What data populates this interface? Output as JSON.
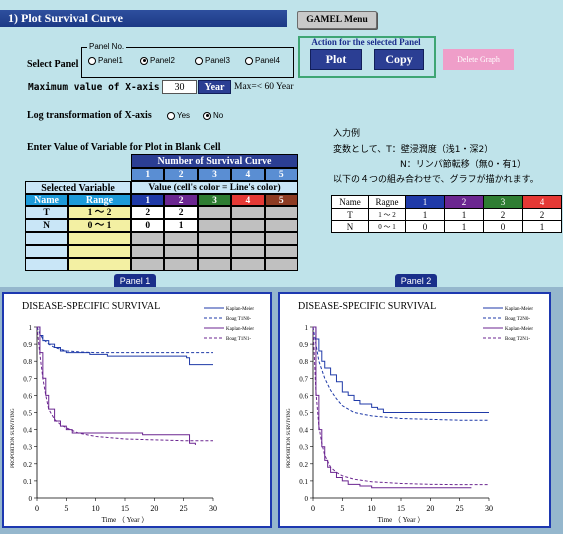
{
  "header": {
    "title": "1)  Plot Survival Curve",
    "menu_label": "GAMEL Menu"
  },
  "select_panel": {
    "label": "Select Panel",
    "group_title": "Panel No.",
    "options": [
      "Panel1",
      "Panel2",
      "Panel3",
      "Panel4"
    ],
    "selected": "Panel2"
  },
  "actions": {
    "title": "Action for the selected Panel",
    "plot": "Plot",
    "copy": "Copy",
    "delete": "Delete Graph"
  },
  "max_x": {
    "label": "Maximum value of X-axis",
    "value": "30",
    "unit_button": "Year",
    "hint": "Max=< 60 Year"
  },
  "logx": {
    "label": "Log transformation of X-axis",
    "yes": "Yes",
    "no": "No",
    "selected": "No"
  },
  "enter_label": "Enter Value of Variable for Plot in Blank Cell",
  "table": {
    "curve_header": "Number of Survival Curve",
    "curve_numbers": [
      "1",
      "2",
      "3",
      "4",
      "5"
    ],
    "curve_colors": [
      "#1f3aa8",
      "#6b2690",
      "#2e7d32",
      "#e53935",
      "#8d3b22"
    ],
    "value_header": "Value (cell's color = Line's color)",
    "selected_header": "Selected Variable",
    "name_header": "Name",
    "range_header": "Range",
    "rows": [
      {
        "name": "T",
        "range": "1 ～ 2",
        "values": [
          "2",
          "2",
          "",
          "",
          ""
        ]
      },
      {
        "name": "N",
        "range": "0 ～ 1",
        "values": [
          "0",
          "1",
          "",
          "",
          ""
        ]
      },
      {
        "name": "",
        "range": "",
        "values": [
          "",
          "",
          "",
          "",
          ""
        ]
      },
      {
        "name": "",
        "range": "",
        "values": [
          "",
          "",
          "",
          "",
          ""
        ]
      },
      {
        "name": "",
        "range": "",
        "values": [
          "",
          "",
          "",
          "",
          ""
        ]
      }
    ]
  },
  "example": {
    "title": "入力例",
    "line1": "変数として、T：壁浸潤度（浅1・深2）",
    "line2": "N：リンパ節転移（無0・有1）",
    "line3": "以下の４つの組み合わせで、グラフが描かれます。",
    "headers": [
      "Name",
      "Ragne",
      "1",
      "2",
      "3",
      "4"
    ],
    "rows": [
      {
        "name": "T",
        "range": "1 ～ 2",
        "values": [
          "1",
          "1",
          "2",
          "2"
        ]
      },
      {
        "name": "N",
        "range": "0 ～ 1",
        "values": [
          "0",
          "1",
          "0",
          "1"
        ]
      }
    ]
  },
  "panels": [
    {
      "tab": "Panel 1",
      "title": "DISEASE-SPECIFIC SURVIVAL",
      "ylabel": "PROPORTION SURVIVING",
      "xlabel": "Time （ Year ）",
      "legend": [
        "Kaplan-Meier",
        "Boag T1N0-",
        "Kaplan-Meier",
        "Boag T1N1-"
      ]
    },
    {
      "tab": "Panel 2",
      "title": "DISEASE-SPECIFIC SURVIVAL",
      "ylabel": "PROPORTION SURVIVING",
      "xlabel": "Time （ Year ）",
      "legend": [
        "Kaplan-Meier",
        "Boag T2N0-",
        "Kaplan-Meier",
        "Boag T2N1-"
      ]
    }
  ],
  "chart_data": [
    {
      "type": "line",
      "title": "DISEASE-SPECIFIC SURVIVAL",
      "xlabel": "Time （ Year ）",
      "ylabel": "PROPORTION SURVIVING",
      "xlim": [
        0,
        30
      ],
      "ylim": [
        0,
        1
      ],
      "xticks": [
        0,
        5,
        10,
        15,
        20,
        25,
        30
      ],
      "yticks": [
        0,
        0.1,
        0.2,
        0.3,
        0.4,
        0.5,
        0.6,
        0.7,
        0.8,
        0.9,
        1
      ],
      "series": [
        {
          "name": "Kaplan-Meier",
          "style": "step",
          "color": "#1f3aa8",
          "x": [
            0,
            0.5,
            1,
            2,
            3,
            4,
            5,
            7,
            9,
            12,
            20,
            25.5,
            26,
            30
          ],
          "y": [
            1,
            0.95,
            0.92,
            0.9,
            0.88,
            0.86,
            0.85,
            0.85,
            0.84,
            0.83,
            0.83,
            0.82,
            0.78,
            0.78
          ]
        },
        {
          "name": "Boag T1N0-",
          "style": "dashed",
          "color": "#1f3aa8",
          "x": [
            0,
            0.5,
            1,
            2,
            3,
            5,
            7,
            10,
            15,
            20,
            25,
            30
          ],
          "y": [
            1,
            0.96,
            0.93,
            0.9,
            0.88,
            0.86,
            0.855,
            0.85,
            0.85,
            0.85,
            0.85,
            0.85
          ]
        },
        {
          "name": "Kaplan-Meier",
          "style": "step",
          "color": "#6b2690",
          "x": [
            0,
            0.5,
            1,
            1.5,
            2,
            3,
            4,
            5,
            6,
            8,
            12,
            18,
            25,
            26,
            27
          ],
          "y": [
            1,
            0.85,
            0.7,
            0.6,
            0.52,
            0.45,
            0.42,
            0.4,
            0.38,
            0.38,
            0.38,
            0.37,
            0.37,
            0.32,
            0.31
          ]
        },
        {
          "name": "Boag T1N1-",
          "style": "dashed",
          "color": "#6b2690",
          "x": [
            0,
            0.5,
            1,
            1.5,
            2,
            3,
            4,
            5,
            7,
            10,
            15,
            20,
            25,
            30
          ],
          "y": [
            1,
            0.84,
            0.7,
            0.6,
            0.52,
            0.46,
            0.43,
            0.41,
            0.38,
            0.36,
            0.345,
            0.34,
            0.335,
            0.335
          ]
        }
      ]
    },
    {
      "type": "line",
      "title": "DISEASE-SPECIFIC SURVIVAL",
      "xlabel": "Time （ Year ）",
      "ylabel": "PROPORTION SURVIVING",
      "xlim": [
        0,
        30
      ],
      "ylim": [
        0,
        1
      ],
      "xticks": [
        0,
        5,
        10,
        15,
        20,
        25,
        30
      ],
      "yticks": [
        0,
        0.1,
        0.2,
        0.3,
        0.4,
        0.5,
        0.6,
        0.7,
        0.8,
        0.9,
        1
      ],
      "series": [
        {
          "name": "Kaplan-Meier",
          "style": "step",
          "color": "#1f3aa8",
          "x": [
            0,
            0.5,
            1,
            1.5,
            2,
            3,
            4,
            5,
            6,
            7,
            8,
            10,
            11,
            12,
            20,
            30
          ],
          "y": [
            1,
            0.93,
            0.86,
            0.8,
            0.76,
            0.72,
            0.68,
            0.62,
            0.6,
            0.57,
            0.55,
            0.53,
            0.52,
            0.5,
            0.5,
            0.5
          ]
        },
        {
          "name": "Boag T2N0-",
          "style": "dashed",
          "color": "#1f3aa8",
          "x": [
            0,
            0.5,
            1,
            2,
            3,
            4,
            5,
            7,
            10,
            15,
            20,
            25,
            30
          ],
          "y": [
            1,
            0.9,
            0.8,
            0.7,
            0.63,
            0.58,
            0.54,
            0.5,
            0.48,
            0.465,
            0.46,
            0.455,
            0.455
          ]
        },
        {
          "name": "Kaplan-Meier",
          "style": "step",
          "color": "#6b2690",
          "x": [
            0,
            0.5,
            1,
            1.5,
            2,
            2.5,
            3,
            4,
            5,
            6,
            8,
            10,
            15,
            20,
            25,
            27
          ],
          "y": [
            1,
            0.6,
            0.4,
            0.3,
            0.22,
            0.18,
            0.15,
            0.12,
            0.1,
            0.08,
            0.07,
            0.06,
            0.06,
            0.06,
            0.06,
            0.06
          ]
        },
        {
          "name": "Boag T2N1-",
          "style": "dashed",
          "color": "#6b2690",
          "x": [
            0,
            0.5,
            1,
            1.5,
            2,
            3,
            4,
            5,
            7,
            10,
            15,
            20,
            25,
            30
          ],
          "y": [
            1,
            0.62,
            0.42,
            0.32,
            0.25,
            0.18,
            0.15,
            0.13,
            0.11,
            0.095,
            0.085,
            0.08,
            0.078,
            0.078
          ]
        }
      ]
    }
  ]
}
